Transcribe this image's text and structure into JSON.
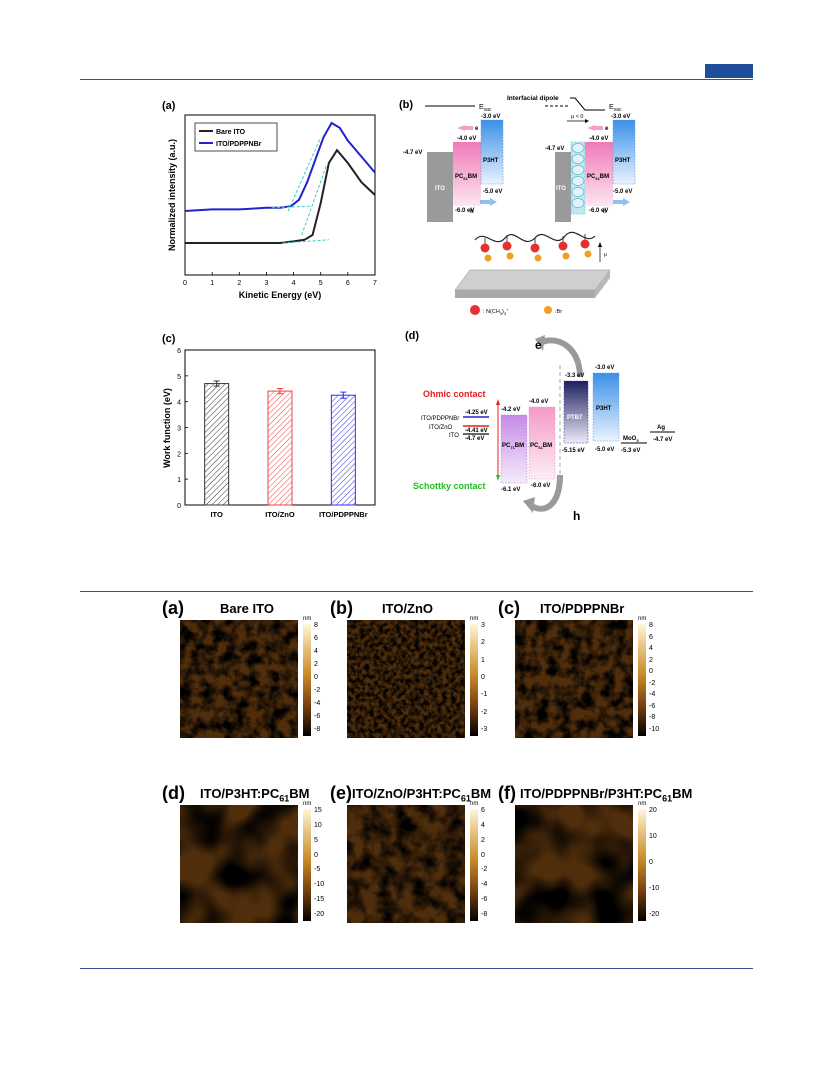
{
  "figure1": {
    "panel_a": {
      "label": "(a)",
      "chart_data": {
        "type": "line",
        "xlabel": "Kinetic Energy (eV)",
        "ylabel": "Normalized intensity (a.u.)",
        "xlim": [
          0,
          7
        ],
        "xticks": [
          "0",
          "1",
          "2",
          "3",
          "4",
          "5",
          "6",
          "7"
        ],
        "series": [
          {
            "name": "Bare ITO",
            "color": "#222222",
            "x": [
              0,
              1,
              2,
              3,
              3.5,
              4,
              4.4,
              4.7,
              5.0,
              5.3,
              5.6,
              6.0,
              6.5,
              7.0
            ],
            "y": [
              0.2,
              0.2,
              0.2,
              0.2,
              0.2,
              0.21,
              0.22,
              0.25,
              0.45,
              0.7,
              0.78,
              0.7,
              0.58,
              0.5
            ]
          },
          {
            "name": "ITO/PDPPNBr",
            "color": "#2323cc",
            "x": [
              0,
              1,
              2,
              3,
              3.5,
              3.9,
              4.2,
              4.5,
              4.8,
              5.1,
              5.4,
              5.7,
              6.0,
              6.5,
              7.0
            ],
            "y": [
              0.4,
              0.41,
              0.41,
              0.42,
              0.42,
              0.43,
              0.47,
              0.58,
              0.72,
              0.86,
              0.95,
              0.92,
              0.84,
              0.74,
              0.64
            ]
          }
        ],
        "legend": "top-left"
      }
    },
    "panel_b": {
      "label": "(b)",
      "dipole_label": "Interfacial dipole",
      "dipole_mu": "μ < 0",
      "evac": "E",
      "evac_sub": "vac",
      "left": {
        "ito": "ITO",
        "ito_level": "-4.7 eV",
        "pcbm": "PC",
        "pcbm_sub": "61",
        "pcbm_tail": "BM",
        "pcbm_top": "-4.0 eV",
        "pcbm_bot": "-6.0 eV",
        "p3ht": "P3HT",
        "p3ht_top": "-3.0 eV",
        "p3ht_bot": "-5.0 eV",
        "e": "e",
        "h": "h"
      },
      "right": {
        "ito": "ITO",
        "ito_level": "-4.7 eV",
        "pcbm": "PC",
        "pcbm_sub": "61",
        "pcbm_tail": "BM",
        "pcbm_top": "-4.0 eV",
        "pcbm_bot": "-6.0 eV",
        "p3ht": "P3HT",
        "p3ht_top": "-3.0 eV",
        "p3ht_bot": "-5.0 eV",
        "e": "e",
        "h": "h"
      },
      "mu_arrow": "μ",
      "legend_n": ": N(CH",
      "legend_n_sub": "3",
      "legend_n_tail": ")",
      "legend_n_sub2": "3",
      "legend_n_sup": "+",
      "legend_br": ":Br",
      "ion_n": "N+",
      "ion_br": "Br"
    },
    "panel_c": {
      "label": "(c)",
      "chart_data": {
        "type": "bar",
        "categories": [
          "ITO",
          "ITO/ZnO",
          "ITO/PDPPNBr"
        ],
        "values": [
          4.7,
          4.41,
          4.25
        ],
        "errors": [
          0.1,
          0.1,
          0.12
        ],
        "colors": [
          "#333333",
          "#ee4444",
          "#3333dd"
        ],
        "ylabel": "Work function (eV)",
        "ylim": [
          0,
          6
        ],
        "yticks": [
          "0",
          "1",
          "2",
          "3",
          "4",
          "5",
          "6"
        ]
      }
    },
    "panel_d": {
      "label": "(d)",
      "ohmic": "Ohmic contact",
      "schottky": "Schottky contact",
      "e": "e",
      "h": "h",
      "left_labels": {
        "pdppnbr": "ITO/PDPPNBr",
        "pdppnbr_val": "-4.25 eV",
        "zno": "ITO/ZnO",
        "zno_val": "-4.41 eV",
        "ito": "ITO",
        "ito_val": "-4.7 eV"
      },
      "pc71": {
        "name": "PC",
        "sub": "71",
        "tail": "BM",
        "top": "-4.2 eV",
        "bot": "-6.1 eV"
      },
      "pc61": {
        "name": "PC",
        "sub": "61",
        "tail": "BM",
        "top": "-4.0 eV",
        "bot": "-6.0 eV"
      },
      "ptb7": {
        "name": "PTB7",
        "top": "-3.3 eV",
        "bot": "-5.15 eV"
      },
      "p3ht": {
        "name": "P3HT",
        "top": "-3.0 eV",
        "bot": "-5.0 eV"
      },
      "moo3": {
        "name": "MoO",
        "sub": "3",
        "val": "-5.3 eV"
      },
      "ag": {
        "name": "Ag",
        "val": "-4.7 eV"
      }
    }
  },
  "figure2": {
    "panels": [
      {
        "label": "(a)",
        "title": "Bare ITO",
        "unit": "nm",
        "ticks": [
          "8",
          "6",
          "4",
          "2",
          "0",
          "-2",
          "-4",
          "-6",
          "-8"
        ],
        "style": "grainy"
      },
      {
        "label": "(b)",
        "title": "ITO/ZnO",
        "unit": "nm",
        "ticks": [
          "3",
          "2",
          "1",
          "0",
          "-1",
          "-2",
          "-3"
        ],
        "style": "fine"
      },
      {
        "label": "(c)",
        "title": "ITO/PDPPNBr",
        "unit": "nm",
        "ticks": [
          "8",
          "6",
          "4",
          "2",
          "0",
          "-2",
          "-4",
          "-6",
          "-8",
          "-10"
        ],
        "style": "grainy"
      },
      {
        "label": "(d)",
        "title": "ITO/P3HT:PC",
        "title_sub": "61",
        "title_tail": "BM",
        "unit": "nm",
        "ticks": [
          "15",
          "10",
          "5",
          "0",
          "-5",
          "-10",
          "-15",
          "-20"
        ],
        "style": "blurry"
      },
      {
        "label": "(e)",
        "title": "ITO/ZnO/P3HT:PC",
        "title_sub": "61",
        "title_tail": "BM",
        "unit": "nm",
        "ticks": [
          "6",
          "4",
          "2",
          "0",
          "-2",
          "-4",
          "-6",
          "-8"
        ],
        "style": "medium"
      },
      {
        "label": "(f)",
        "title": "ITO/PDPPNBr/P3HT:PC",
        "title_sub": "61",
        "title_tail": "BM",
        "unit": "nm",
        "ticks": [
          "20",
          "10",
          "0",
          "-10",
          "-20"
        ],
        "style": "blurry"
      }
    ]
  },
  "colors": {
    "rule": "#2f5597",
    "tab": "#1f4e9a"
  }
}
